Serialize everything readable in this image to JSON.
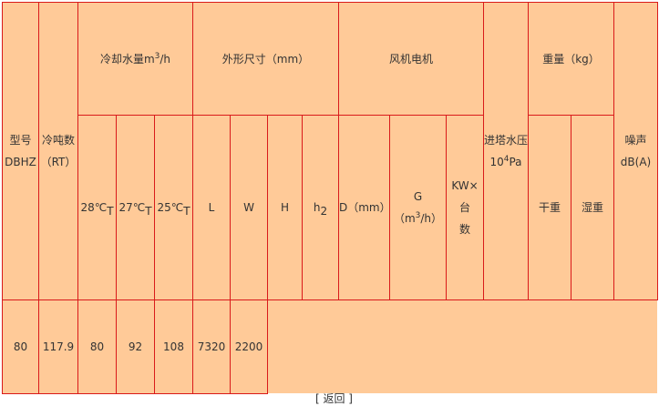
{
  "table": {
    "headers": {
      "model": {
        "line1": "型号",
        "line2": "DBHZ"
      },
      "tonnage": {
        "line1": "冷吨数",
        "line2": "（RT）"
      },
      "cooling_water": {
        "label": "冷却水量m",
        "sup": "3",
        "unit": "/h",
        "sub": [
          {
            "label": "28℃",
            "sub": "T"
          },
          {
            "label": "27℃",
            "sub": "T"
          },
          {
            "label": "25℃",
            "sub": "T"
          }
        ]
      },
      "dimensions": {
        "label": "外形尺寸（mm）",
        "sub": [
          "L",
          "W",
          "H",
          "h"
        ],
        "h_sub": "2"
      },
      "fan_motor": {
        "label": "风机电机",
        "d": "D（mm）",
        "g_prefix": "G（m",
        "g_sup": "3",
        "g_suffix": "/h）",
        "kw_line1": "KW×台",
        "kw_line2": "数"
      },
      "inlet_pressure": {
        "line1": "进塔水压",
        "line2_base": "10",
        "line2_sup": "4",
        "line2_unit": "Pa"
      },
      "weight": {
        "label": "重量（kg）",
        "dry": "干重",
        "wet": "湿重"
      },
      "noise": {
        "line1": "噪声",
        "line2": "dB(A)"
      }
    },
    "rows": [
      [
        "80",
        "117.9",
        "80",
        "92",
        "108",
        "7320",
        "2200"
      ]
    ]
  },
  "footer": {
    "back_link": "[ 返回 ]"
  },
  "colors": {
    "cell_bg": "#FFCA98",
    "border": "#D91A1A"
  }
}
